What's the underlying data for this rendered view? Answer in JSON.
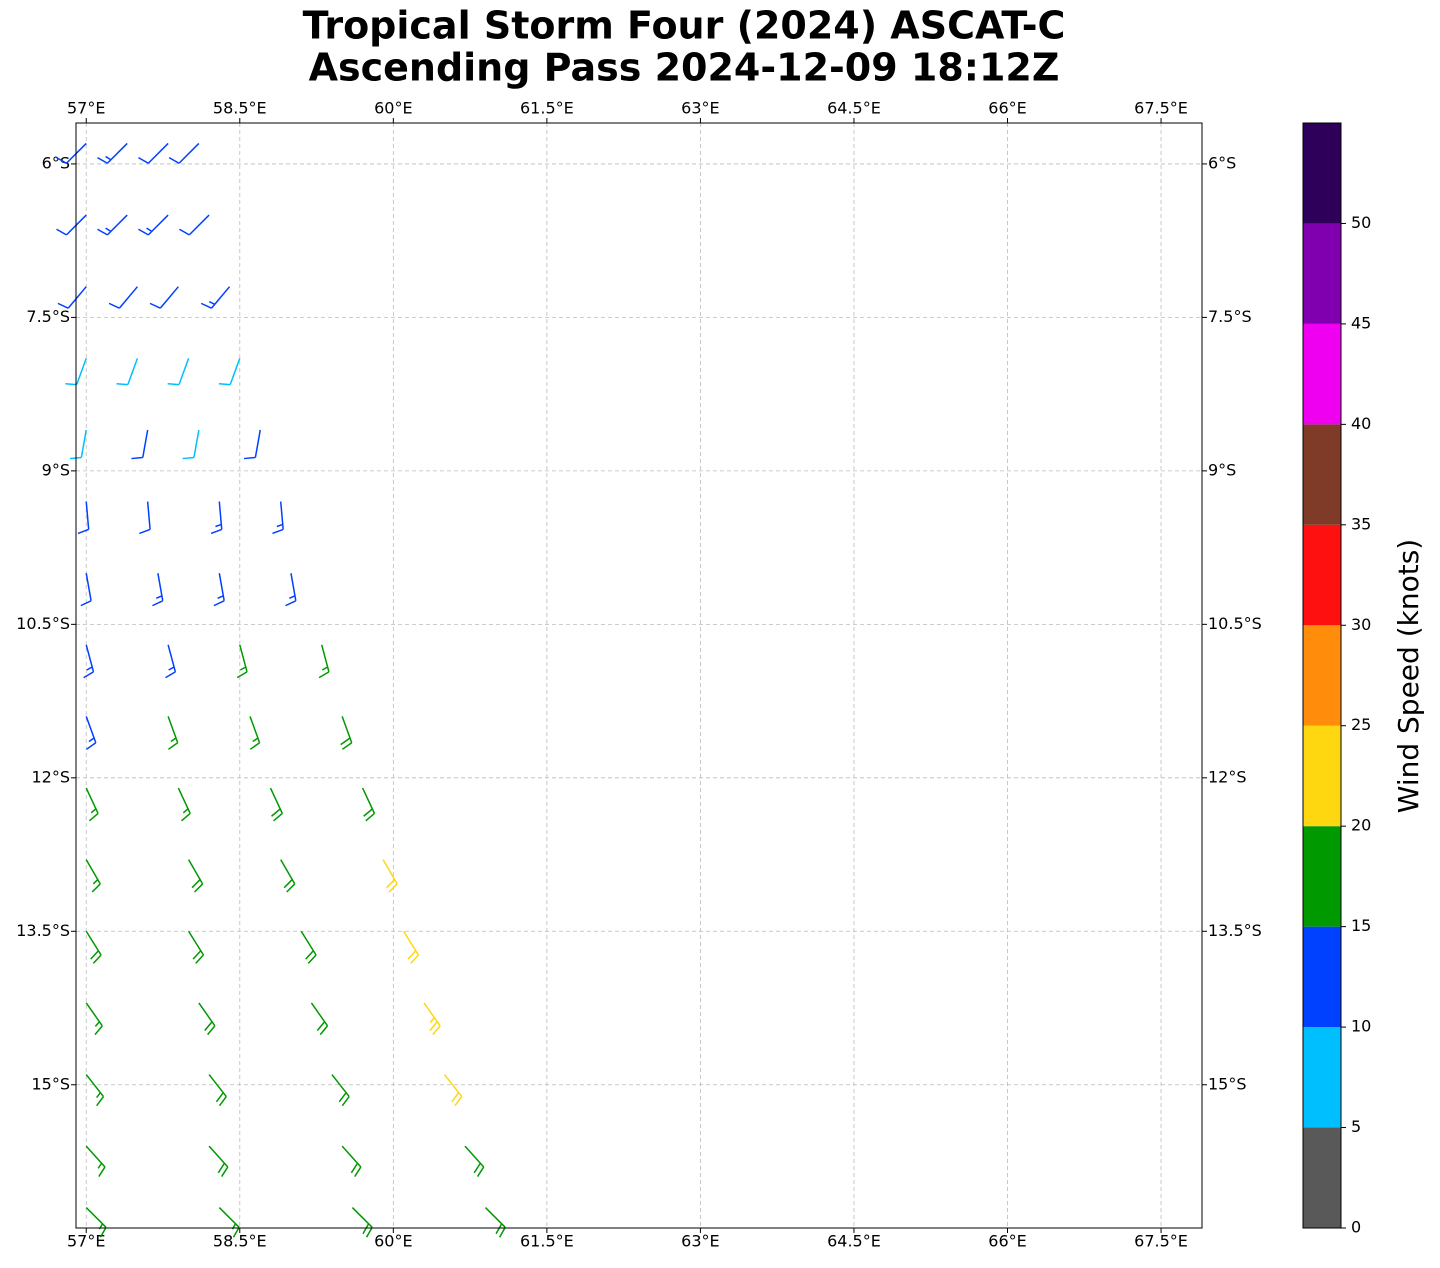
{
  "chart_data": {
    "type": "barbs",
    "title": "Tropical Storm Four (2024) ASCAT-C",
    "subtitle": "Ascending Pass 2024-12-09 18:12Z",
    "xlim": [
      56.9,
      67.9
    ],
    "ylim": [
      -16.4,
      -5.6
    ],
    "xticks": [
      {
        "value": 57,
        "label": "57°E"
      },
      {
        "value": 58.5,
        "label": "58.5°E"
      },
      {
        "value": 60,
        "label": "60°E"
      },
      {
        "value": 61.5,
        "label": "61.5°E"
      },
      {
        "value": 63,
        "label": "63°E"
      },
      {
        "value": 64.5,
        "label": "64.5°E"
      },
      {
        "value": 66,
        "label": "66°E"
      },
      {
        "value": 67.5,
        "label": "67.5°E"
      }
    ],
    "yticks": [
      {
        "value": -6,
        "label": "6°S"
      },
      {
        "value": -7.5,
        "label": "7.5°S"
      },
      {
        "value": -9,
        "label": "9°S"
      },
      {
        "value": -10.5,
        "label": "10.5°S"
      },
      {
        "value": -12,
        "label": "12°S"
      },
      {
        "value": -13.5,
        "label": "13.5°S"
      },
      {
        "value": -15,
        "label": "15°S"
      }
    ],
    "grid": true,
    "lon": [
      57.0,
      57.4,
      57.8,
      58.1,
      57.0,
      57.4,
      57.8,
      58.2,
      57.0,
      57.5,
      57.9,
      58.4,
      57.0,
      57.5,
      58.0,
      58.5,
      57.0,
      57.6,
      58.1,
      58.7,
      57.0,
      57.6,
      58.3,
      58.9,
      57.0,
      57.7,
      58.3,
      59.0,
      57.0,
      57.8,
      58.5,
      59.3,
      57.0,
      57.8,
      58.6,
      59.5,
      57.0,
      57.9,
      58.8,
      59.7,
      57.0,
      58.0,
      58.9,
      59.9,
      57.0,
      58.0,
      59.1,
      60.1,
      57.0,
      58.1,
      59.2,
      60.3,
      57.0,
      58.2,
      59.4,
      60.5,
      57.0,
      58.2,
      59.5,
      60.7,
      57.0,
      58.3,
      59.6,
      60.9
    ],
    "lat": [
      -5.8,
      -5.8,
      -5.8,
      -5.8,
      -6.5,
      -6.5,
      -6.5,
      -6.5,
      -7.2,
      -7.2,
      -7.2,
      -7.2,
      -7.9,
      -7.9,
      -7.9,
      -7.9,
      -8.6,
      -8.6,
      -8.6,
      -8.6,
      -9.3,
      -9.3,
      -9.3,
      -9.3,
      -10.0,
      -10.0,
      -10.0,
      -10.0,
      -10.7,
      -10.7,
      -10.7,
      -10.7,
      -11.4,
      -11.4,
      -11.4,
      -11.4,
      -12.1,
      -12.1,
      -12.1,
      -12.1,
      -12.8,
      -12.8,
      -12.8,
      -12.8,
      -13.5,
      -13.5,
      -13.5,
      -13.5,
      -14.2,
      -14.2,
      -14.2,
      -14.2,
      -14.9,
      -14.9,
      -14.9,
      -14.9,
      -15.6,
      -15.6,
      -15.6,
      -15.6,
      -16.2,
      -16.2,
      -16.2,
      -16.2
    ],
    "speed": [
      12,
      13,
      12,
      12,
      12,
      13,
      13,
      12,
      11,
      12,
      12,
      13,
      8,
      8,
      9,
      9,
      9,
      11,
      8,
      12,
      12,
      12,
      13,
      13,
      12,
      13,
      13,
      14,
      13,
      13,
      16,
      17,
      14,
      16,
      17,
      18,
      16,
      17,
      18,
      19,
      17,
      18,
      19,
      21,
      18,
      18,
      19,
      22,
      17,
      18,
      19,
      23,
      17,
      18,
      19,
      21,
      17,
      18,
      18,
      19,
      17,
      17,
      18,
      18
    ],
    "direction": [
      225,
      225,
      225,
      225,
      225,
      225,
      225,
      225,
      220,
      220,
      220,
      220,
      200,
      200,
      200,
      200,
      190,
      190,
      190,
      190,
      175,
      175,
      175,
      175,
      170,
      170,
      170,
      170,
      165,
      165,
      165,
      165,
      160,
      160,
      160,
      160,
      155,
      155,
      155,
      155,
      150,
      150,
      150,
      150,
      148,
      148,
      148,
      148,
      145,
      145,
      145,
      145,
      142,
      142,
      142,
      142,
      138,
      138,
      138,
      138,
      135,
      135,
      135,
      135
    ],
    "colorbar": {
      "label": "Wind Speed (knots)",
      "bounds": [
        0,
        5,
        10,
        15,
        20,
        25,
        30,
        35,
        40,
        45,
        50,
        55
      ],
      "colors": [
        "#595959",
        "#00bfff",
        "#0040ff",
        "#009900",
        "#ffd710",
        "#ff8c0a",
        "#ff1010",
        "#7f3a28",
        "#f000f0",
        "#8000b0",
        "#2e0059"
      ],
      "ticks": [
        0,
        5,
        10,
        15,
        20,
        25,
        30,
        35,
        40,
        45,
        50
      ]
    }
  }
}
